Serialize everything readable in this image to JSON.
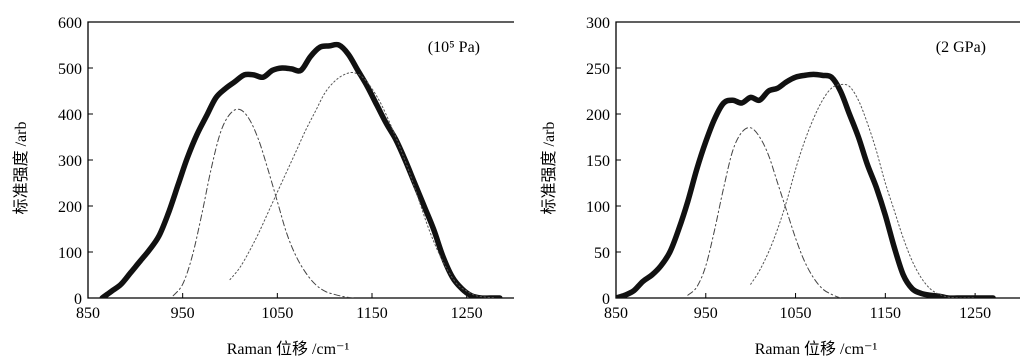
{
  "chart_data": [
    {
      "type": "line",
      "annotation": "(10⁵ Pa)",
      "xlabel": "Raman 位移 /cm⁻¹",
      "ylabel": "标准强度 /arb",
      "xlim": [
        850,
        1300
      ],
      "ylim": [
        0,
        600
      ],
      "xticks": [
        850,
        950,
        1050,
        1150,
        1250
      ],
      "yticks": [
        0,
        100,
        200,
        300,
        400,
        500,
        600
      ],
      "grid": false,
      "series": [
        {
          "style": "thick-solid",
          "x": [
            865,
            875,
            885,
            895,
            905,
            915,
            925,
            935,
            945,
            955,
            965,
            975,
            985,
            995,
            1005,
            1015,
            1025,
            1035,
            1045,
            1055,
            1065,
            1075,
            1085,
            1095,
            1105,
            1115,
            1125,
            1135,
            1145,
            1155,
            1165,
            1175,
            1185,
            1195,
            1205,
            1215,
            1225,
            1235,
            1245,
            1255,
            1265,
            1275,
            1285
          ],
          "y": [
            0,
            15,
            30,
            55,
            80,
            105,
            135,
            185,
            245,
            305,
            355,
            395,
            435,
            455,
            470,
            485,
            485,
            480,
            495,
            500,
            498,
            495,
            525,
            545,
            548,
            550,
            530,
            495,
            460,
            420,
            380,
            345,
            300,
            250,
            200,
            150,
            90,
            45,
            20,
            5,
            0,
            0,
            0
          ]
        },
        {
          "style": "dash-dot",
          "x": [
            940,
            950,
            960,
            970,
            980,
            990,
            1000,
            1010,
            1020,
            1030,
            1040,
            1050,
            1060,
            1070,
            1080,
            1090,
            1100,
            1110,
            1120,
            1130
          ],
          "y": [
            5,
            30,
            90,
            180,
            280,
            360,
            400,
            410,
            390,
            345,
            280,
            210,
            140,
            90,
            55,
            30,
            15,
            8,
            3,
            0
          ]
        },
        {
          "style": "dotted",
          "x": [
            1000,
            1010,
            1020,
            1030,
            1040,
            1050,
            1060,
            1070,
            1080,
            1090,
            1100,
            1110,
            1120,
            1130,
            1140,
            1150,
            1160,
            1170,
            1180,
            1190,
            1200,
            1210,
            1220,
            1230,
            1240,
            1250,
            1260,
            1270,
            1280
          ],
          "y": [
            40,
            65,
            100,
            140,
            185,
            230,
            275,
            320,
            365,
            405,
            445,
            470,
            485,
            490,
            480,
            455,
            420,
            375,
            325,
            270,
            210,
            150,
            100,
            60,
            30,
            15,
            5,
            2,
            0
          ]
        }
      ]
    },
    {
      "type": "line",
      "annotation": "(2 GPa)",
      "xlabel": "Raman 位移 /cm⁻¹",
      "ylabel": "标准强度 /arb",
      "xlim": [
        850,
        1300
      ],
      "ylim": [
        0,
        300
      ],
      "xticks": [
        850,
        950,
        1050,
        1150,
        1250
      ],
      "yticks": [
        0,
        50,
        100,
        150,
        200,
        250,
        300
      ],
      "grid": false,
      "series": [
        {
          "style": "thick-solid",
          "x": [
            850,
            860,
            870,
            880,
            890,
            900,
            910,
            920,
            930,
            940,
            950,
            960,
            970,
            980,
            990,
            1000,
            1010,
            1020,
            1030,
            1040,
            1050,
            1060,
            1070,
            1080,
            1090,
            1100,
            1110,
            1120,
            1130,
            1140,
            1150,
            1160,
            1170,
            1180,
            1190,
            1200,
            1210,
            1220,
            1230,
            1240,
            1250,
            1260,
            1270
          ],
          "y": [
            0,
            3,
            8,
            18,
            25,
            35,
            50,
            75,
            105,
            140,
            170,
            195,
            212,
            215,
            212,
            218,
            215,
            225,
            228,
            235,
            240,
            242,
            243,
            242,
            240,
            225,
            200,
            175,
            145,
            120,
            90,
            55,
            25,
            10,
            5,
            3,
            2,
            0,
            0,
            0,
            0,
            0,
            0
          ]
        },
        {
          "style": "dash-dot",
          "x": [
            930,
            940,
            950,
            960,
            970,
            980,
            990,
            1000,
            1010,
            1020,
            1030,
            1040,
            1050,
            1060,
            1070,
            1080,
            1090,
            1100
          ],
          "y": [
            3,
            12,
            35,
            75,
            120,
            160,
            180,
            185,
            175,
            155,
            125,
            95,
            65,
            40,
            22,
            10,
            4,
            0
          ]
        },
        {
          "style": "dotted",
          "x": [
            1000,
            1010,
            1020,
            1030,
            1040,
            1050,
            1060,
            1070,
            1080,
            1090,
            1100,
            1110,
            1120,
            1130,
            1140,
            1150,
            1160,
            1170,
            1180,
            1190,
            1200,
            1210,
            1220,
            1230,
            1240,
            1250
          ],
          "y": [
            15,
            30,
            50,
            75,
            105,
            140,
            170,
            195,
            215,
            228,
            232,
            230,
            215,
            190,
            160,
            125,
            95,
            65,
            40,
            22,
            10,
            4,
            1,
            0,
            0,
            0
          ]
        }
      ]
    }
  ]
}
